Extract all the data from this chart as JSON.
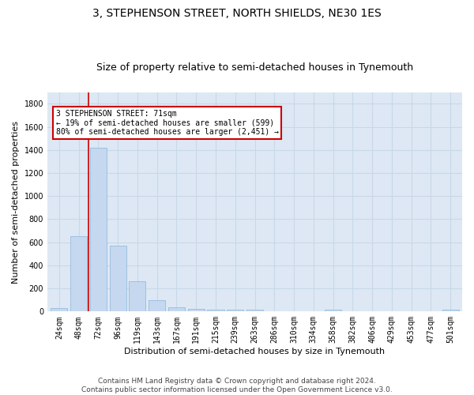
{
  "title": "3, STEPHENSON STREET, NORTH SHIELDS, NE30 1ES",
  "subtitle": "Size of property relative to semi-detached houses in Tynemouth",
  "xlabel": "Distribution of semi-detached houses by size in Tynemouth",
  "ylabel": "Number of semi-detached properties",
  "categories": [
    "24sqm",
    "48sqm",
    "72sqm",
    "96sqm",
    "119sqm",
    "143sqm",
    "167sqm",
    "191sqm",
    "215sqm",
    "239sqm",
    "263sqm",
    "286sqm",
    "310sqm",
    "334sqm",
    "358sqm",
    "382sqm",
    "406sqm",
    "429sqm",
    "453sqm",
    "477sqm",
    "501sqm"
  ],
  "values": [
    30,
    650,
    1420,
    570,
    265,
    100,
    35,
    25,
    18,
    15,
    15,
    5,
    0,
    0,
    18,
    0,
    0,
    0,
    0,
    0,
    15
  ],
  "bar_color": "#c5d8f0",
  "bar_edge_color": "#8ab4d8",
  "grid_color": "#c8d8e8",
  "background_color": "#dde8f4",
  "annotation_text": "3 STEPHENSON STREET: 71sqm\n← 19% of semi-detached houses are smaller (599)\n80% of semi-detached houses are larger (2,451) →",
  "annotation_box_color": "#ffffff",
  "annotation_box_edge": "#cc0000",
  "vline_color": "#cc0000",
  "ylim": [
    0,
    1900
  ],
  "yticks": [
    0,
    200,
    400,
    600,
    800,
    1000,
    1200,
    1400,
    1600,
    1800
  ],
  "footer_line1": "Contains HM Land Registry data © Crown copyright and database right 2024.",
  "footer_line2": "Contains public sector information licensed under the Open Government Licence v3.0.",
  "title_fontsize": 10,
  "subtitle_fontsize": 9,
  "xlabel_fontsize": 8,
  "ylabel_fontsize": 8,
  "tick_fontsize": 7,
  "footer_fontsize": 6.5
}
